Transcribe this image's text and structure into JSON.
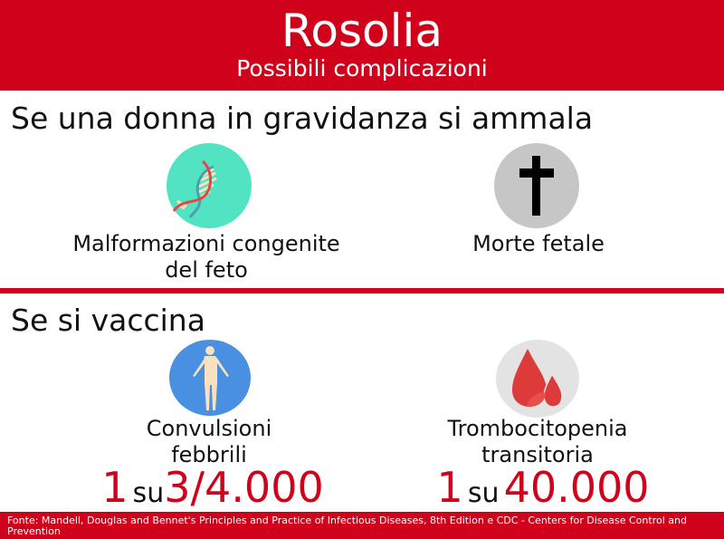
{
  "header": {
    "title": "Rosolia",
    "subtitle": "Possibili complicazioni"
  },
  "section1": {
    "heading": "Se una donna in gravidanza si ammala",
    "items": [
      {
        "icon": "dna-icon",
        "label_line1": "Malformazioni congenite",
        "label_line2": "del feto",
        "color": "#52e3c2"
      },
      {
        "icon": "cross-icon",
        "label_line1": "Morte fetale",
        "color": "#c6c6c6"
      }
    ]
  },
  "section2": {
    "heading": "Se si vaccina",
    "items": [
      {
        "icon": "human-body-icon",
        "label_line1": "Convulsioni",
        "label_line2": "febbrili",
        "stat_one": "1",
        "stat_su": "su",
        "stat_value": "3/4.000",
        "color": "#4a90e2"
      },
      {
        "icon": "blood-drops-icon",
        "label_line1": "Trombocitopenia",
        "label_line2": "transitoria",
        "stat_one": "1",
        "stat_su": "su",
        "stat_value": "40.000",
        "color": "#e3e3e3"
      }
    ]
  },
  "footer": {
    "source": "Fonte: Mandell, Douglas and Bennet's Principles and Practice of Infectious Diseases, 8th Edition e CDC - Centers for Disease Control and Prevention"
  },
  "colors": {
    "accent": "#d0021b"
  }
}
